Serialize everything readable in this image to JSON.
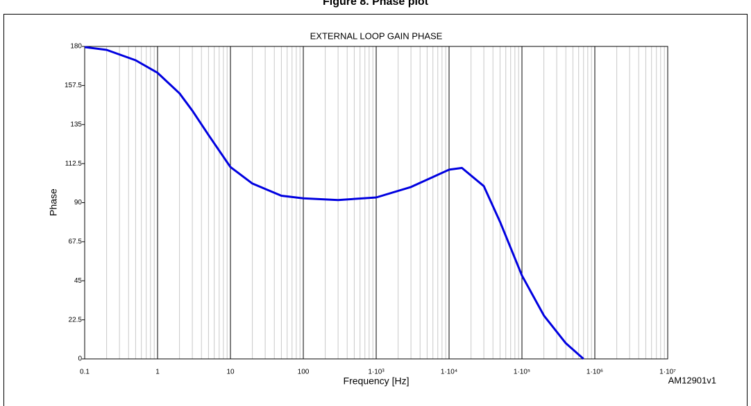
{
  "chart_data": {
    "type": "line",
    "figure_title": "Figure 8. Phase plot",
    "title": "EXTERNAL LOOP GAIN PHASE",
    "x_label": "Frequency [Hz]",
    "y_label": "Phase",
    "annotation": "AM12901v1",
    "x_log": true,
    "xlim": [
      0.1,
      10000000
    ],
    "xticks": [
      0.1,
      1,
      10,
      100,
      {
        "value": 1000,
        "label": "1·10³"
      },
      {
        "value": 10000,
        "label": "1·10⁴"
      },
      {
        "value": 100000,
        "label": "1·10⁵"
      },
      {
        "value": 1000000,
        "label": "1·10⁶"
      },
      {
        "value": 10000000,
        "label": "1·10⁷"
      }
    ],
    "ylim": [
      0,
      180
    ],
    "yticks": [
      0,
      22.5,
      45,
      67.5,
      90,
      112.5,
      135,
      157.5,
      180
    ],
    "grid": true,
    "x": [
      0.1,
      0.2,
      0.5,
      1,
      2,
      3,
      5,
      10,
      20,
      50,
      100,
      300,
      1000,
      3000,
      10000,
      15000,
      30000,
      50000,
      100000,
      200000,
      400000,
      700000
    ],
    "series": [
      {
        "color": "#0000e0",
        "values": [
          179.6,
          178,
          172,
          164.8,
          153,
          143,
          129,
          110.5,
          101,
          94,
          92.5,
          91.5,
          93,
          99,
          109,
          110,
          99.5,
          79,
          48,
          25,
          9,
          0
        ]
      }
    ]
  }
}
